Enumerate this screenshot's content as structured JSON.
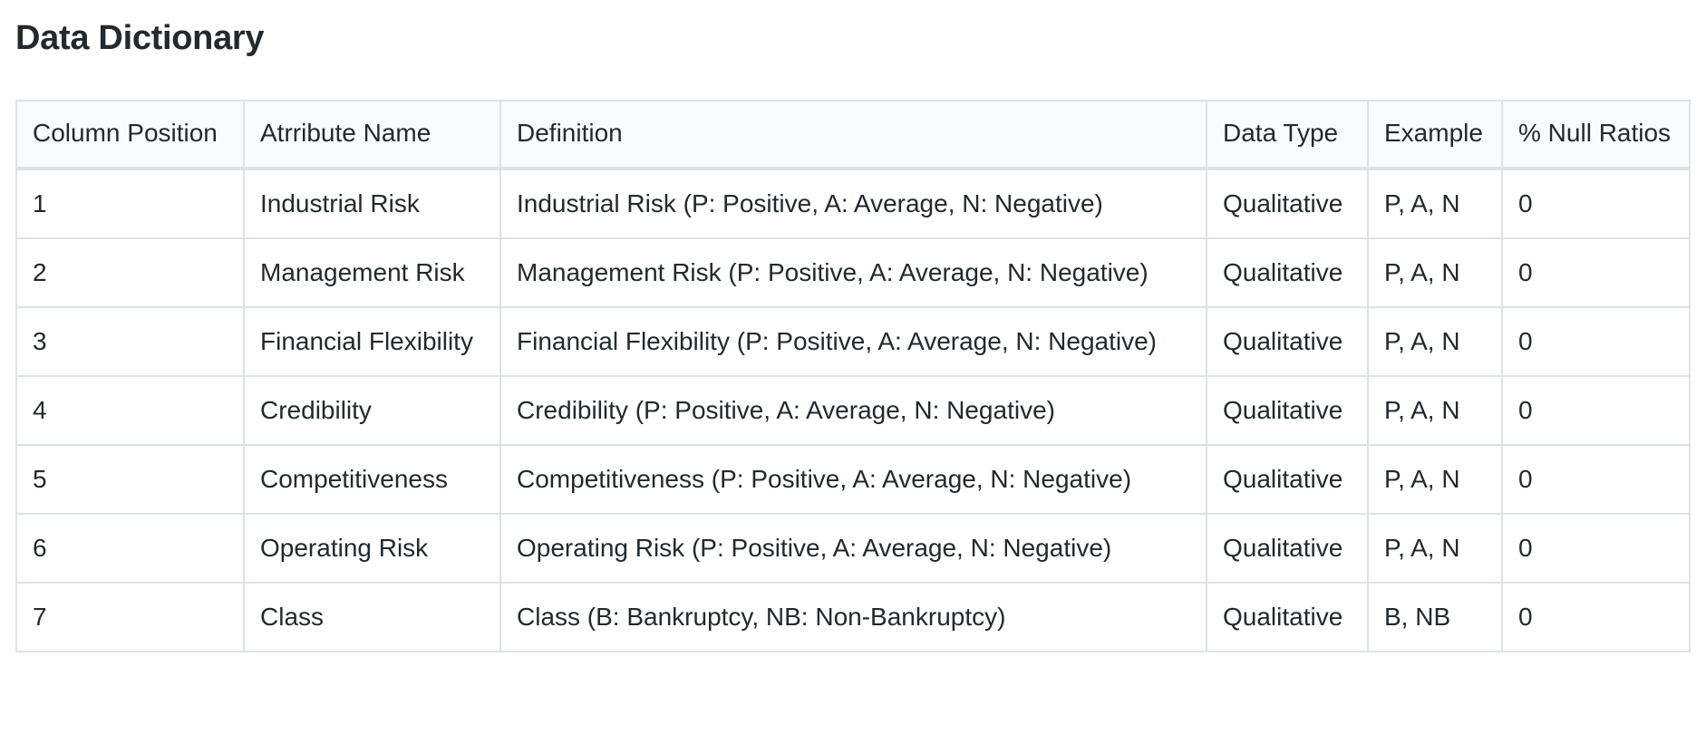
{
  "title": "Data Dictionary",
  "table": {
    "headers": [
      "Column Position",
      "Atrribute Name",
      "Definition",
      "Data Type",
      "Example",
      "% Null Ratios"
    ],
    "rows": [
      [
        "1",
        "Industrial Risk",
        "Industrial Risk (P: Positive, A: Average, N: Negative)",
        "Qualitative",
        "P, A, N",
        "0"
      ],
      [
        "2",
        "Management Risk",
        "Management Risk (P: Positive, A: Average, N: Negative)",
        "Qualitative",
        "P, A, N",
        "0"
      ],
      [
        "3",
        "Financial Flexibility",
        "Financial Flexibility (P: Positive, A: Average, N: Negative)",
        "Qualitative",
        "P, A, N",
        "0"
      ],
      [
        "4",
        "Credibility",
        "Credibility (P: Positive, A: Average, N: Negative)",
        "Qualitative",
        "P, A, N",
        "0"
      ],
      [
        "5",
        "Competitiveness",
        "Competitiveness (P: Positive, A: Average, N: Negative)",
        "Qualitative",
        "P, A, N",
        "0"
      ],
      [
        "6",
        "Operating Risk",
        "Operating Risk (P: Positive, A: Average, N: Negative)",
        "Qualitative",
        "P, A, N",
        "0"
      ],
      [
        "7",
        "Class",
        "Class (B: Bankruptcy, NB: Non-Bankruptcy)",
        "Qualitative",
        "B, NB",
        "0"
      ]
    ]
  }
}
